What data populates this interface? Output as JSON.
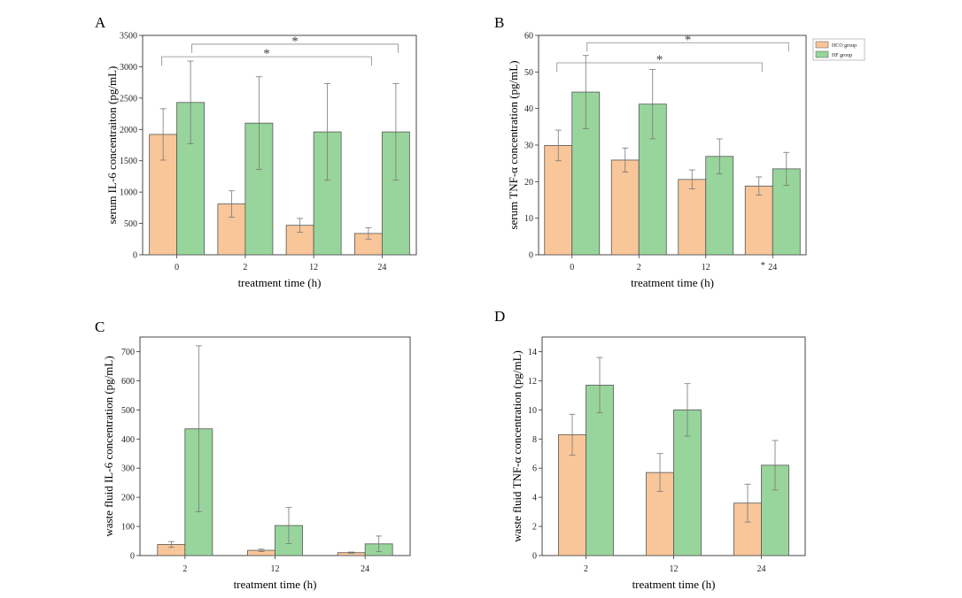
{
  "colors": {
    "hco": "#f9c699",
    "hf": "#98d59c",
    "bar_stroke": "#555555",
    "err": "#777777",
    "bracket": "#888888"
  },
  "legend": {
    "hco": "HCO group",
    "hf": "HF group"
  },
  "chart_data": [
    {
      "panel": "A",
      "type": "bar",
      "xlabel": "treatment time (h)",
      "ylabel": "serum IL-6 concentraiton (pg/mL)",
      "categories": [
        "0",
        "2",
        "12",
        "24"
      ],
      "ylim": [
        0,
        3500
      ],
      "yticks": [
        0,
        500,
        1000,
        1500,
        2000,
        2500,
        3000,
        3500
      ],
      "series": [
        {
          "name": "HCO group",
          "values": [
            1920,
            810,
            470,
            340
          ],
          "errors": [
            410,
            210,
            110,
            90
          ]
        },
        {
          "name": "HF group",
          "values": [
            2430,
            2100,
            1960,
            1960
          ],
          "errors": [
            660,
            740,
            770,
            770
          ]
        }
      ],
      "legend": false,
      "brackets": [
        {
          "from": 0,
          "to": 3,
          "label": "*",
          "y": 3160
        },
        {
          "from": 0,
          "to": 3,
          "label": "*",
          "y": 3360
        }
      ]
    },
    {
      "panel": "B",
      "type": "bar",
      "xlabel": "treatment time (h)",
      "ylabel": "serum TNF-α concentration (pg/mL)",
      "categories": [
        "0",
        "2",
        "12",
        "24"
      ],
      "tick_prefix": "*",
      "ylim": [
        0,
        60
      ],
      "yticks": [
        0,
        10,
        20,
        30,
        40,
        50,
        60
      ],
      "series": [
        {
          "name": "HCO group",
          "values": [
            29.9,
            25.9,
            20.6,
            18.8
          ],
          "errors": [
            4.2,
            3.3,
            2.6,
            2.5
          ]
        },
        {
          "name": "HF group",
          "values": [
            44.5,
            41.2,
            26.9,
            23.5
          ],
          "errors": [
            10.0,
            9.5,
            4.8,
            4.5
          ]
        }
      ],
      "legend": true,
      "brackets": [
        {
          "from": 0,
          "to": 3,
          "label": "*",
          "y": 52.5
        },
        {
          "from": 0,
          "to": 3,
          "label": "*",
          "y": 58
        }
      ]
    },
    {
      "panel": "C",
      "type": "bar",
      "xlabel": "treatment time (h)",
      "ylabel": "waste fluid IL-6 concentration (pg/mL)",
      "categories": [
        "2",
        "12",
        "24"
      ],
      "ylim": [
        0,
        750
      ],
      "yticks": [
        0,
        100,
        200,
        300,
        400,
        500,
        600,
        700
      ],
      "series": [
        {
          "name": "HCO group",
          "values": [
            38,
            18,
            10
          ],
          "errors": [
            10,
            4,
            2
          ]
        },
        {
          "name": "HF group",
          "values": [
            435,
            103,
            40
          ],
          "errors": [
            285,
            62,
            27
          ]
        }
      ],
      "legend": false,
      "brackets": []
    },
    {
      "panel": "D",
      "type": "bar",
      "xlabel": "treatment time (h)",
      "ylabel": "waste fluid TNF-α concentration (pg/mL)",
      "categories": [
        "2",
        "12",
        "24"
      ],
      "ylim": [
        0,
        15
      ],
      "yticks": [
        0,
        2,
        4,
        6,
        8,
        10,
        12,
        14
      ],
      "series": [
        {
          "name": "HCO group",
          "values": [
            8.3,
            5.7,
            3.6
          ],
          "errors": [
            1.4,
            1.3,
            1.3
          ]
        },
        {
          "name": "HF group",
          "values": [
            11.7,
            10.0,
            6.2
          ],
          "errors": [
            1.9,
            1.8,
            1.7
          ]
        }
      ],
      "legend": false,
      "brackets": []
    }
  ]
}
